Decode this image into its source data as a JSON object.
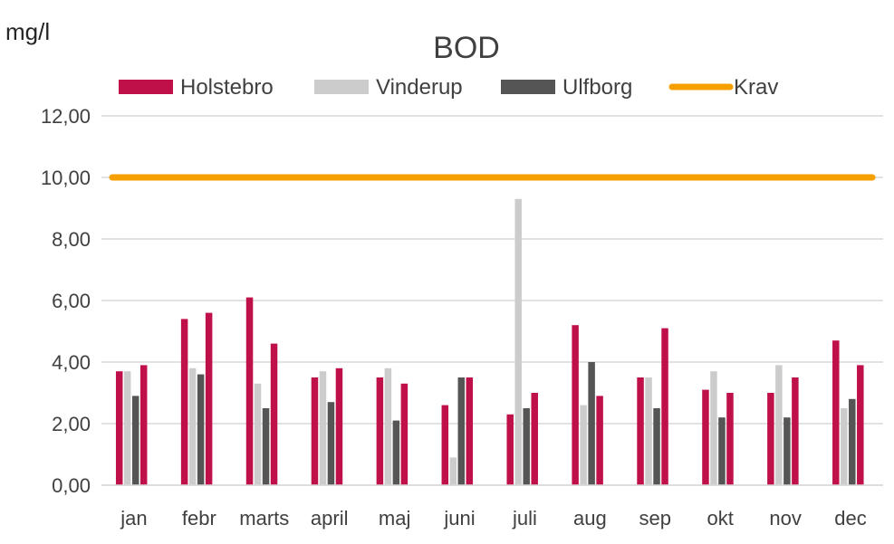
{
  "chart_data": {
    "type": "bar",
    "title": "BOD",
    "unit_label": "mg/l",
    "categories": [
      "jan",
      "febr",
      "marts",
      "april",
      "maj",
      "juni",
      "juli",
      "aug",
      "sep",
      "okt",
      "nov",
      "dec"
    ],
    "ylim": [
      0,
      12
    ],
    "yticks": [
      "0,00",
      "2,00",
      "4,00",
      "6,00",
      "8,00",
      "10,00",
      "12,00"
    ],
    "ytick_values": [
      0,
      2,
      4,
      6,
      8,
      10,
      12
    ],
    "grid": true,
    "legend_position": "top",
    "series": [
      {
        "name": "Holstebro",
        "kind": "bar",
        "color": "#C0104A",
        "values": [
          3.7,
          5.4,
          6.1,
          3.5,
          3.5,
          2.6,
          2.3,
          5.2,
          3.5,
          3.1,
          3.0,
          4.7
        ]
      },
      {
        "name": "Vinderup",
        "kind": "bar",
        "color": "#CCCCCC",
        "values": [
          3.7,
          3.8,
          3.3,
          3.7,
          3.8,
          0.9,
          9.3,
          2.6,
          3.5,
          3.7,
          3.9,
          2.5
        ]
      },
      {
        "name": "Ulfborg",
        "kind": "bar",
        "color": "#555555",
        "values": [
          2.9,
          3.6,
          2.5,
          2.7,
          2.1,
          3.5,
          2.5,
          4.0,
          2.5,
          2.2,
          2.2,
          2.8
        ]
      },
      {
        "name": "",
        "kind": "bar",
        "color": "#C0104A",
        "values": [
          3.9,
          5.6,
          4.6,
          3.8,
          3.3,
          3.5,
          3.0,
          2.9,
          5.1,
          3.0,
          3.5,
          3.9
        ]
      },
      {
        "name": "Krav",
        "kind": "line",
        "color": "#F5A000",
        "values": [
          10,
          10,
          10,
          10,
          10,
          10,
          10,
          10,
          10,
          10,
          10,
          10
        ]
      }
    ]
  }
}
